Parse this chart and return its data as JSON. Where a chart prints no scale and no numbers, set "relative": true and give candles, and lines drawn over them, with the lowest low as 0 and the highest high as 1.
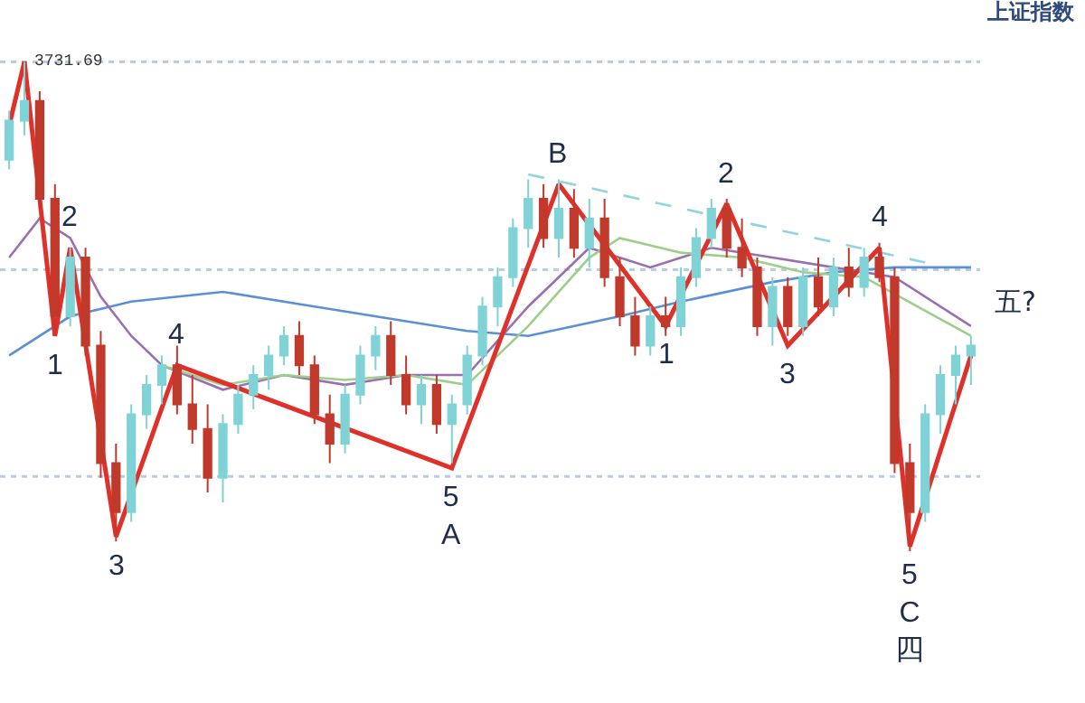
{
  "chart_data": {
    "type": "candlestick",
    "title": "上证指数",
    "relative": true,
    "categories": [
      null,
      null,
      null,
      null,
      null,
      null,
      null,
      null,
      null,
      null,
      null,
      null,
      null,
      null,
      null,
      null,
      null,
      null,
      null,
      null,
      null,
      null,
      null,
      null,
      null,
      null,
      null,
      null,
      null,
      null,
      null,
      null,
      null,
      null,
      null,
      null,
      null,
      null,
      null,
      null,
      null,
      null,
      null,
      null,
      null,
      null,
      null,
      null,
      null,
      null,
      null,
      null,
      null,
      null,
      null,
      null,
      null,
      null,
      null,
      null,
      null,
      null,
      null,
      null
    ],
    "ohlc": [
      [
        0.8,
        0.9,
        0.78,
        0.88
      ],
      [
        0.88,
        1.0,
        0.85,
        0.92
      ],
      [
        0.92,
        0.94,
        0.7,
        0.72
      ],
      [
        0.72,
        0.75,
        0.45,
        0.48
      ],
      [
        0.48,
        0.62,
        0.46,
        0.6
      ],
      [
        0.6,
        0.62,
        0.4,
        0.42
      ],
      [
        0.42,
        0.45,
        0.15,
        0.18
      ],
      [
        0.18,
        0.22,
        0.02,
        0.08
      ],
      [
        0.08,
        0.3,
        0.06,
        0.28
      ],
      [
        0.28,
        0.36,
        0.25,
        0.34
      ],
      [
        0.34,
        0.4,
        0.3,
        0.38
      ],
      [
        0.38,
        0.42,
        0.28,
        0.3
      ],
      [
        0.3,
        0.36,
        0.22,
        0.25
      ],
      [
        0.25,
        0.3,
        0.12,
        0.15
      ],
      [
        0.15,
        0.28,
        0.1,
        0.26
      ],
      [
        0.26,
        0.34,
        0.24,
        0.32
      ],
      [
        0.32,
        0.38,
        0.29,
        0.36
      ],
      [
        0.36,
        0.42,
        0.33,
        0.4
      ],
      [
        0.4,
        0.46,
        0.38,
        0.44
      ],
      [
        0.44,
        0.47,
        0.36,
        0.38
      ],
      [
        0.38,
        0.4,
        0.26,
        0.28
      ],
      [
        0.28,
        0.32,
        0.18,
        0.22
      ],
      [
        0.22,
        0.34,
        0.2,
        0.32
      ],
      [
        0.32,
        0.42,
        0.3,
        0.4
      ],
      [
        0.4,
        0.46,
        0.37,
        0.44
      ],
      [
        0.44,
        0.47,
        0.34,
        0.36
      ],
      [
        0.36,
        0.4,
        0.28,
        0.3
      ],
      [
        0.3,
        0.36,
        0.26,
        0.34
      ],
      [
        0.34,
        0.36,
        0.24,
        0.26
      ],
      [
        0.26,
        0.32,
        0.18,
        0.3
      ],
      [
        0.3,
        0.42,
        0.28,
        0.4
      ],
      [
        0.4,
        0.52,
        0.38,
        0.5
      ],
      [
        0.5,
        0.58,
        0.46,
        0.56
      ],
      [
        0.56,
        0.68,
        0.54,
        0.66
      ],
      [
        0.66,
        0.76,
        0.62,
        0.72
      ],
      [
        0.72,
        0.75,
        0.62,
        0.64
      ],
      [
        0.64,
        0.76,
        0.6,
        0.7
      ],
      [
        0.7,
        0.74,
        0.6,
        0.62
      ],
      [
        0.62,
        0.72,
        0.58,
        0.68
      ],
      [
        0.68,
        0.72,
        0.54,
        0.56
      ],
      [
        0.56,
        0.6,
        0.46,
        0.48
      ],
      [
        0.48,
        0.52,
        0.4,
        0.42
      ],
      [
        0.42,
        0.5,
        0.4,
        0.48
      ],
      [
        0.48,
        0.52,
        0.44,
        0.46
      ],
      [
        0.46,
        0.58,
        0.44,
        0.56
      ],
      [
        0.56,
        0.66,
        0.54,
        0.64
      ],
      [
        0.64,
        0.72,
        0.62,
        0.7
      ],
      [
        0.7,
        0.72,
        0.6,
        0.62
      ],
      [
        0.62,
        0.68,
        0.56,
        0.58
      ],
      [
        0.58,
        0.6,
        0.44,
        0.46
      ],
      [
        0.46,
        0.56,
        0.42,
        0.54
      ],
      [
        0.54,
        0.56,
        0.44,
        0.46
      ],
      [
        0.46,
        0.58,
        0.44,
        0.56
      ],
      [
        0.56,
        0.6,
        0.48,
        0.5
      ],
      [
        0.5,
        0.6,
        0.48,
        0.58
      ],
      [
        0.58,
        0.62,
        0.52,
        0.54
      ],
      [
        0.54,
        0.62,
        0.52,
        0.6
      ],
      [
        0.6,
        0.63,
        0.55,
        0.56
      ],
      [
        0.56,
        0.58,
        0.16,
        0.18
      ],
      [
        0.18,
        0.22,
        0.0,
        0.08
      ],
      [
        0.08,
        0.3,
        0.06,
        0.28
      ],
      [
        0.28,
        0.38,
        0.24,
        0.36
      ],
      [
        0.36,
        0.42,
        0.3,
        0.4
      ],
      [
        0.4,
        0.44,
        0.34,
        0.42
      ]
    ],
    "colors": [
      "#7fd3d6",
      "#7fd3d6",
      "#c0392b",
      "#c0392b",
      "#7fd3d6",
      "#c0392b",
      "#c0392b",
      "#c0392b",
      "#7fd3d6",
      "#7fd3d6",
      "#7fd3d6",
      "#c0392b",
      "#c0392b",
      "#c0392b",
      "#7fd3d6",
      "#7fd3d6",
      "#7fd3d6",
      "#7fd3d6",
      "#7fd3d6",
      "#c0392b",
      "#c0392b",
      "#c0392b",
      "#7fd3d6",
      "#7fd3d6",
      "#7fd3d6",
      "#c0392b",
      "#c0392b",
      "#7fd3d6",
      "#c0392b",
      "#7fd3d6",
      "#7fd3d6",
      "#7fd3d6",
      "#7fd3d6",
      "#7fd3d6",
      "#7fd3d6",
      "#c0392b",
      "#7fd3d6",
      "#c0392b",
      "#7fd3d6",
      "#c0392b",
      "#c0392b",
      "#c0392b",
      "#7fd3d6",
      "#c0392b",
      "#7fd3d6",
      "#7fd3d6",
      "#7fd3d6",
      "#c0392b",
      "#c0392b",
      "#c0392b",
      "#7fd3d6",
      "#c0392b",
      "#7fd3d6",
      "#c0392b",
      "#7fd3d6",
      "#c0392b",
      "#7fd3d6",
      "#c0392b",
      "#c0392b",
      "#c0392b",
      "#7fd3d6",
      "#7fd3d6",
      "#7fd3d6",
      "#7fd3d6"
    ],
    "series": [
      {
        "type": "line",
        "color": "#e0302a",
        "values": [
          0.87,
          1.0,
          null,
          0.44,
          0.62,
          null,
          null,
          0.03,
          null,
          null,
          null,
          0.38,
          null,
          null,
          null,
          null,
          null,
          null,
          null,
          null,
          null,
          null,
          null,
          null,
          null,
          null,
          null,
          null,
          null,
          0.17,
          null,
          null,
          null,
          null,
          null,
          null,
          0.75,
          null,
          null,
          null,
          null,
          null,
          null,
          0.46,
          null,
          null,
          null,
          0.71,
          null,
          null,
          null,
          0.42,
          null,
          null,
          null,
          null,
          null,
          0.62,
          null,
          0.01,
          null,
          null,
          null,
          0.4
        ]
      },
      {
        "type": "line",
        "color": "#5b8fd6",
        "values": [
          0.4,
          null,
          null,
          null,
          0.48,
          null,
          null,
          null,
          0.51,
          null,
          null,
          null,
          null,
          null,
          0.53,
          null,
          null,
          null,
          null,
          null,
          0.5,
          null,
          null,
          null,
          null,
          null,
          0.47,
          null,
          null,
          null,
          0.45,
          null,
          null,
          null,
          0.44,
          null,
          null,
          null,
          null,
          null,
          0.48,
          null,
          null,
          null,
          0.51,
          null,
          null,
          null,
          null,
          null,
          0.55,
          null,
          null,
          null,
          0.57,
          null,
          null,
          null,
          0.58,
          null,
          null,
          null,
          null,
          0.58
        ]
      },
      {
        "type": "line",
        "color": "#9a6fb0",
        "values": [
          0.6,
          null,
          0.68,
          null,
          0.64,
          null,
          0.52,
          null,
          0.44,
          null,
          0.38,
          null,
          null,
          null,
          0.33,
          null,
          null,
          null,
          0.36,
          null,
          null,
          null,
          0.34,
          null,
          null,
          null,
          0.36,
          null,
          null,
          null,
          0.36,
          null,
          null,
          null,
          0.5,
          null,
          null,
          null,
          0.62,
          null,
          null,
          null,
          0.58,
          null,
          null,
          null,
          0.62,
          null,
          null,
          null,
          0.6,
          null,
          null,
          null,
          0.58,
          null,
          null,
          null,
          0.56,
          null,
          null,
          null,
          null,
          0.46
        ]
      },
      {
        "type": "line",
        "color": "#9ccf8a",
        "values": [
          null,
          null,
          null,
          null,
          null,
          null,
          null,
          null,
          null,
          null,
          0.38,
          null,
          null,
          null,
          0.34,
          null,
          null,
          null,
          0.36,
          null,
          null,
          null,
          0.35,
          null,
          null,
          null,
          0.36,
          null,
          null,
          null,
          0.34,
          null,
          null,
          null,
          0.46,
          null,
          null,
          null,
          0.6,
          null,
          0.64,
          null,
          null,
          null,
          0.61,
          null,
          null,
          null,
          0.6,
          null,
          null,
          null,
          0.57,
          null,
          null,
          null,
          0.56,
          null,
          null,
          null,
          null,
          null,
          null,
          0.44
        ]
      },
      {
        "type": "line",
        "color": "#8fd4de",
        "line_style": "dashed",
        "values": [
          null,
          null,
          null,
          null,
          null,
          null,
          null,
          null,
          null,
          null,
          null,
          null,
          null,
          null,
          null,
          null,
          null,
          null,
          null,
          null,
          null,
          null,
          null,
          null,
          null,
          null,
          null,
          null,
          null,
          null,
          null,
          null,
          null,
          null,
          0.77,
          null,
          null,
          null,
          null,
          null,
          null,
          null,
          null,
          null,
          null,
          null,
          null,
          null,
          null,
          null,
          null,
          null,
          null,
          null,
          null,
          null,
          null,
          null,
          null,
          null,
          0.59,
          null,
          null,
          null
        ]
      }
    ],
    "ref_lines": [
      {
        "axis": "y",
        "value": 1.0,
        "color": "#b7cde3",
        "line_style": "dotted"
      },
      {
        "axis": "y",
        "value": 0.575,
        "color": "#b7cde3",
        "line_style": "dotted"
      },
      {
        "axis": "y",
        "value": 0.153,
        "color": "#b7cde3",
        "line_style": "dotted"
      }
    ],
    "annotations": [
      {
        "text": "3731.69",
        "y": 1.0
      },
      {
        "text": "1",
        "y": 0.44
      },
      {
        "text": "2",
        "y": 0.62
      },
      {
        "text": "3",
        "y": 0.03
      },
      {
        "text": "4",
        "y": 0.38
      },
      {
        "text": "5\nA",
        "y": 0.17
      },
      {
        "text": "B",
        "y": 0.75
      },
      {
        "text": "1",
        "y": 0.46
      },
      {
        "text": "2",
        "y": 0.71
      },
      {
        "text": "3",
        "y": 0.42
      },
      {
        "text": "4",
        "y": 0.62
      },
      {
        "text": "5\nC\n四",
        "y": 0.01
      },
      "五?"
    ]
  }
}
